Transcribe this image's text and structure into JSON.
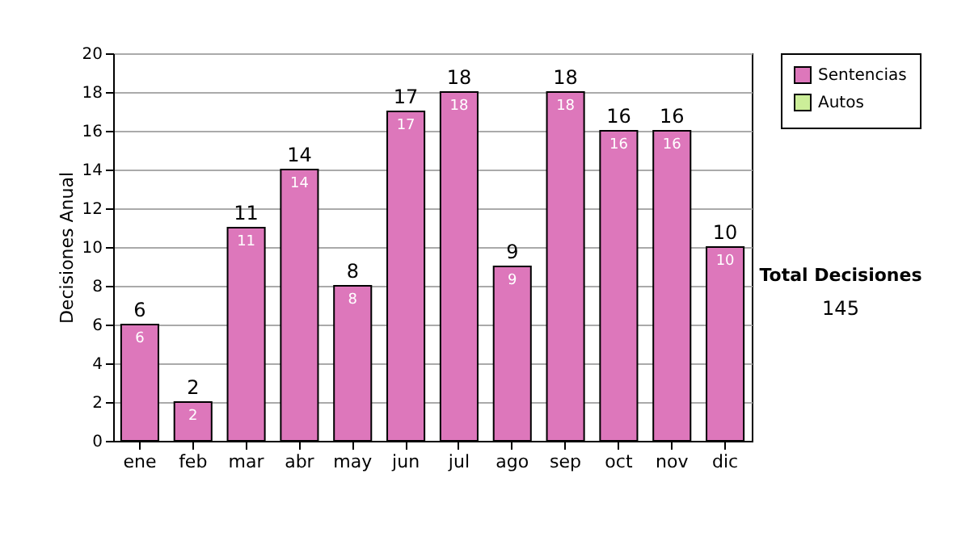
{
  "chart_data": {
    "type": "bar",
    "stacked": true,
    "ylabel": "Decisiones Anual",
    "categories": [
      "ene",
      "feb",
      "mar",
      "abr",
      "may",
      "jun",
      "jul",
      "ago",
      "sep",
      "oct",
      "nov",
      "dic"
    ],
    "series": [
      {
        "name": "Sentencias",
        "color": "#dd77bb",
        "values": [
          6,
          2,
          11,
          14,
          8,
          17,
          18,
          9,
          18,
          16,
          16,
          10
        ],
        "value_labels": [
          "6",
          "2",
          "11",
          "14",
          "8",
          "17",
          "18",
          "9",
          "18",
          "16",
          "16",
          "10"
        ]
      },
      {
        "name": "Autos",
        "color": "#ccee99",
        "values": [
          null,
          null,
          null,
          null,
          null,
          null,
          null,
          null,
          null,
          null,
          null,
          null
        ]
      }
    ],
    "totals": [
      "6",
      "2",
      "11",
      "14",
      "8",
      "17",
      "18",
      "9",
      "18",
      "16",
      "16",
      "10"
    ],
    "ylim": [
      0,
      20
    ],
    "yticks": [
      0,
      2,
      4,
      6,
      8,
      10,
      12,
      14,
      16,
      18,
      20
    ],
    "grid": "y",
    "legend": "right",
    "annotations": [
      "Total Decisiones",
      "145"
    ]
  }
}
